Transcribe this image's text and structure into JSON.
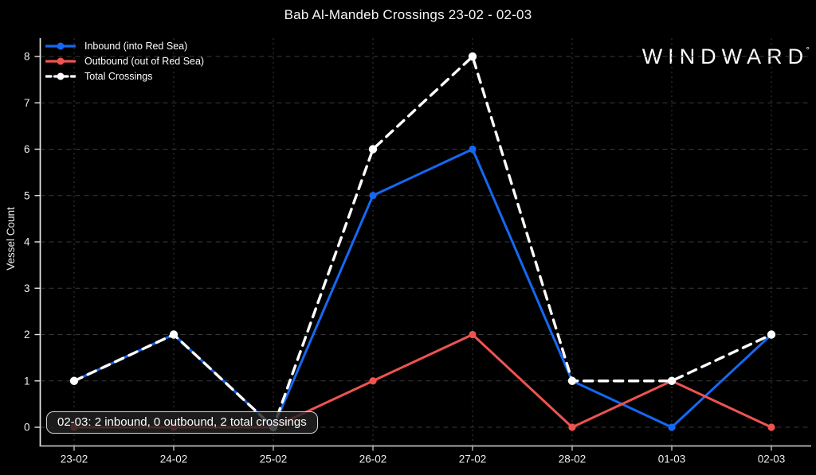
{
  "header": {
    "brand": "WINDWARD",
    "brand_mark": "°"
  },
  "tooltip": {
    "text": "02-03: 2 inbound, 0 outbound, 2 total crossings"
  },
  "chart_data": {
    "type": "line",
    "title": "Bab Al-Mandeb Crossings 23-02 - 02-03",
    "xlabel": "",
    "ylabel": "Vessel Count",
    "ylim": [
      0,
      8
    ],
    "yticks": [
      0,
      1,
      2,
      3,
      4,
      5,
      6,
      7,
      8
    ],
    "grid": true,
    "legend_position": "top-left",
    "categories": [
      "23-02",
      "24-02",
      "25-02",
      "26-02",
      "27-02",
      "28-02",
      "01-03",
      "02-03"
    ],
    "series": [
      {
        "name": "Inbound (into Red Sea)",
        "color": "#1668f2",
        "style": "solid",
        "values": [
          1,
          2,
          0,
          5,
          6,
          1,
          0,
          2
        ]
      },
      {
        "name": "Outbound (out of Red Sea)",
        "color": "#ef5350",
        "style": "solid",
        "values": [
          0,
          0,
          0,
          1,
          2,
          0,
          1,
          0
        ]
      },
      {
        "name": "Total Crossings",
        "color": "#ffffff",
        "style": "dashed",
        "values": [
          1,
          2,
          0,
          6,
          8,
          1,
          1,
          2
        ]
      }
    ],
    "colors": {
      "background": "#000000",
      "grid": "#3a3a3a",
      "axis_y": "#e8e8e8",
      "axis_x": "#b9b9b9",
      "text": "#ececec"
    }
  }
}
